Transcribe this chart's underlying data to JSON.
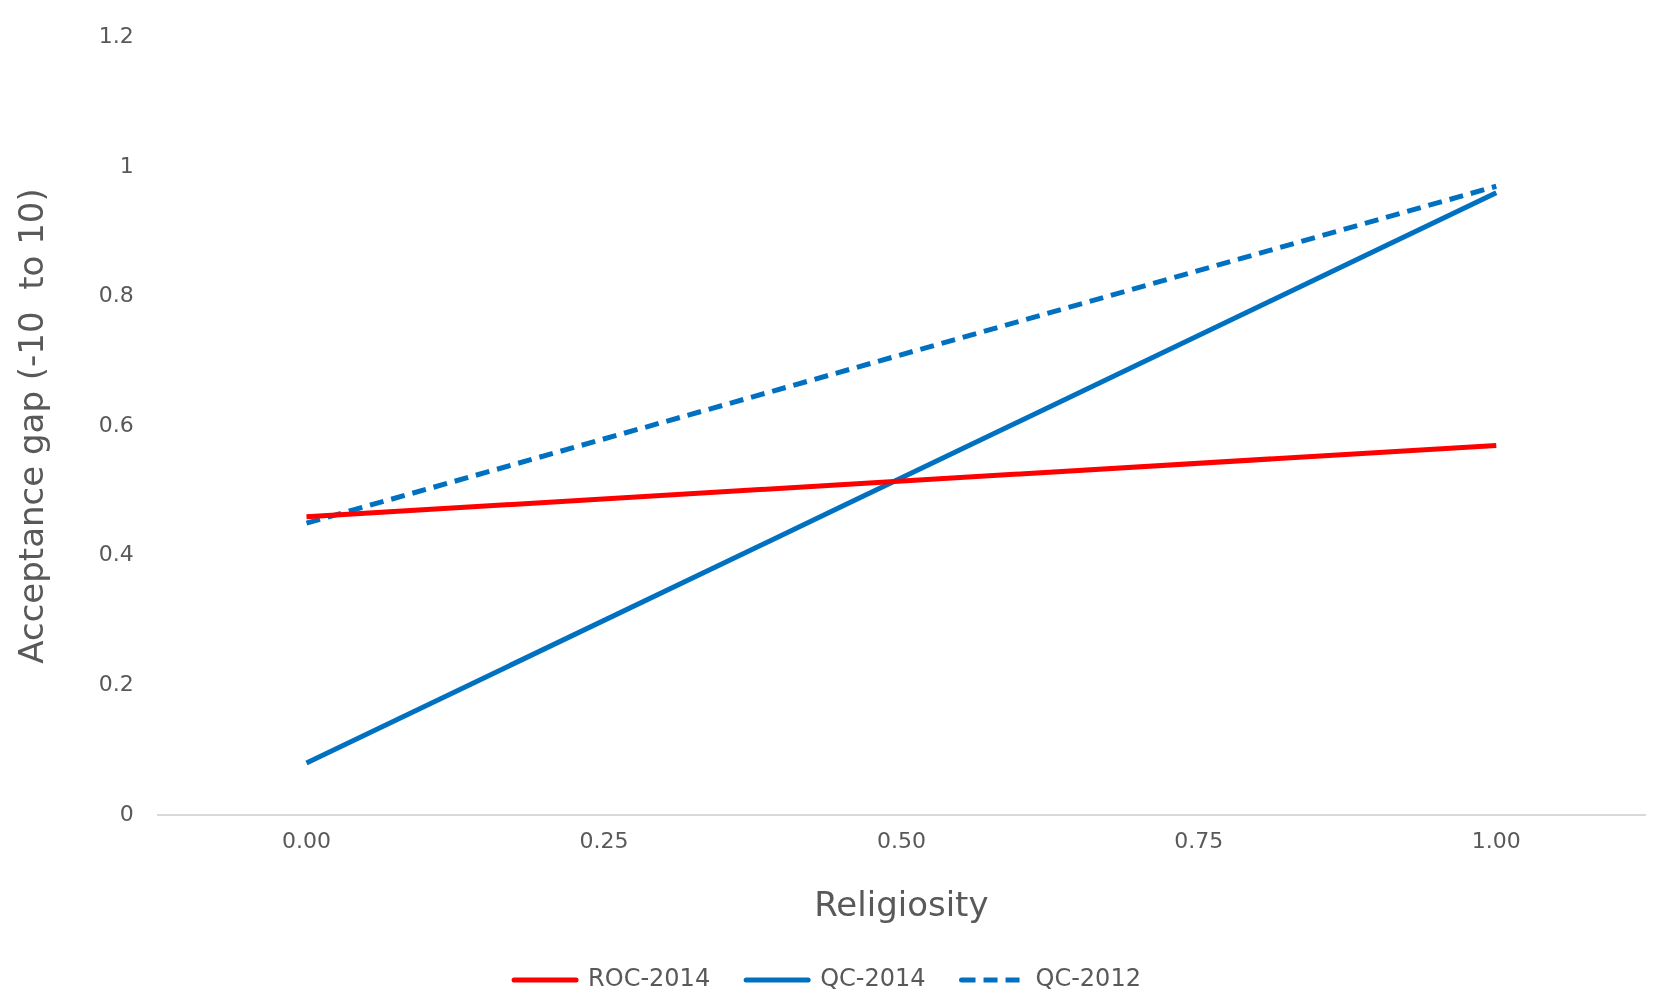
{
  "chart_data": {
    "type": "line",
    "xlabel": "Religiosity",
    "ylabel": "Acceptance gap (-10  to 10)",
    "x": [
      0,
      1
    ],
    "xlim": [
      -0.125,
      1.125
    ],
    "xticks": [
      {
        "value": 0,
        "label": "0.00"
      },
      {
        "value": 0.25,
        "label": "0.25"
      },
      {
        "value": 0.5,
        "label": "0.50"
      },
      {
        "value": 0.75,
        "label": "0.75"
      },
      {
        "value": 1,
        "label": "1.00"
      }
    ],
    "ylim": [
      0,
      1.2
    ],
    "yticks": [
      0,
      0.2,
      0.4,
      0.6,
      0.8,
      1,
      1.2
    ],
    "series": [
      {
        "name": "ROC-2014",
        "color": "#ff0000",
        "values": [
          0.46,
          0.57
        ],
        "line_style": "solid"
      },
      {
        "name": "QC-2014",
        "color": "#0070c0",
        "values": [
          0.08,
          0.96
        ],
        "line_style": "solid"
      },
      {
        "name": "QC-2012",
        "color": "#0070c0",
        "values": [
          0.45,
          0.97
        ],
        "line_style": "dashed"
      }
    ],
    "grid": false,
    "legend": "bottom"
  }
}
